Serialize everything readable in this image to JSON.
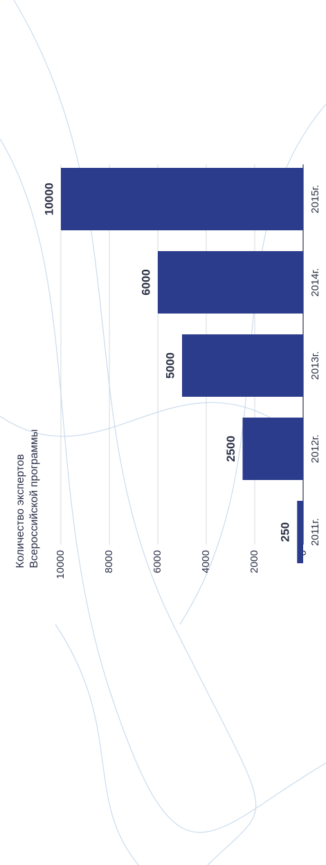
{
  "chart_data": {
    "type": "bar",
    "title": "Количество экспертов",
    "subtitle": "Всероссийской программы",
    "categories": [
      "2011г.",
      "2012г.",
      "2013г.",
      "2014г.",
      "2015г."
    ],
    "values": [
      250,
      2500,
      5000,
      6000,
      10000
    ],
    "color": "#2c3c8c",
    "ylim": [
      0,
      10000
    ],
    "yticks": [
      0,
      2000,
      4000,
      6000,
      8000,
      10000
    ],
    "grid": true
  }
}
